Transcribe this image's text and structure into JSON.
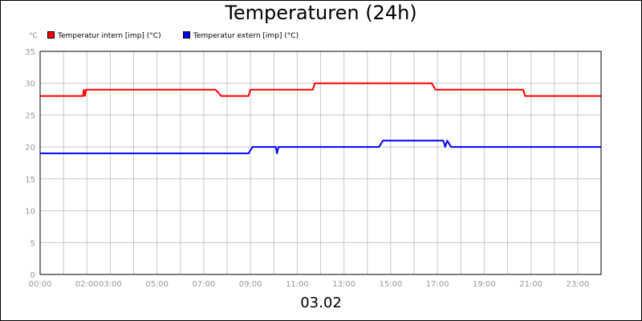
{
  "chart_data": {
    "type": "line",
    "title": "Temperaturen (24h)",
    "y_unit": "°C",
    "date_label": "03.02",
    "ylim": [
      0,
      35
    ],
    "yticks": [
      0,
      5,
      10,
      15,
      20,
      25,
      30,
      35
    ],
    "xlim_hours": [
      0,
      24
    ],
    "xtick_labels": [
      "00:00",
      "02:00",
      "03:00",
      "05:00",
      "07:00",
      "09:00",
      "11:00",
      "13:00",
      "15:00",
      "17:00",
      "19:00",
      "21:00",
      "23:00"
    ],
    "grid": true,
    "legend_position": "top-left",
    "series": [
      {
        "name": "Temperatur intern [imp] (°C)",
        "color": "#ff0000",
        "points": [
          [
            "00:00",
            28
          ],
          [
            "01:50",
            28
          ],
          [
            "01:52",
            29
          ],
          [
            "01:55",
            28
          ],
          [
            "01:58",
            29
          ],
          [
            "07:30",
            29
          ],
          [
            "07:45",
            28
          ],
          [
            "08:55",
            28
          ],
          [
            "09:00",
            29
          ],
          [
            "11:40",
            29
          ],
          [
            "11:45",
            30
          ],
          [
            "16:45",
            30
          ],
          [
            "16:55",
            29
          ],
          [
            "20:40",
            29
          ],
          [
            "20:45",
            28
          ],
          [
            "24:00",
            28
          ]
        ]
      },
      {
        "name": "Temperatur extern [imp] (°C)",
        "color": "#0000ff",
        "points": [
          [
            "00:00",
            19
          ],
          [
            "08:55",
            19
          ],
          [
            "09:05",
            20
          ],
          [
            "10:05",
            20
          ],
          [
            "10:08",
            19
          ],
          [
            "10:12",
            20
          ],
          [
            "14:30",
            20
          ],
          [
            "14:40",
            21
          ],
          [
            "17:15",
            21
          ],
          [
            "17:20",
            20
          ],
          [
            "17:25",
            21
          ],
          [
            "17:35",
            20
          ],
          [
            "24:00",
            20
          ]
        ]
      }
    ]
  }
}
